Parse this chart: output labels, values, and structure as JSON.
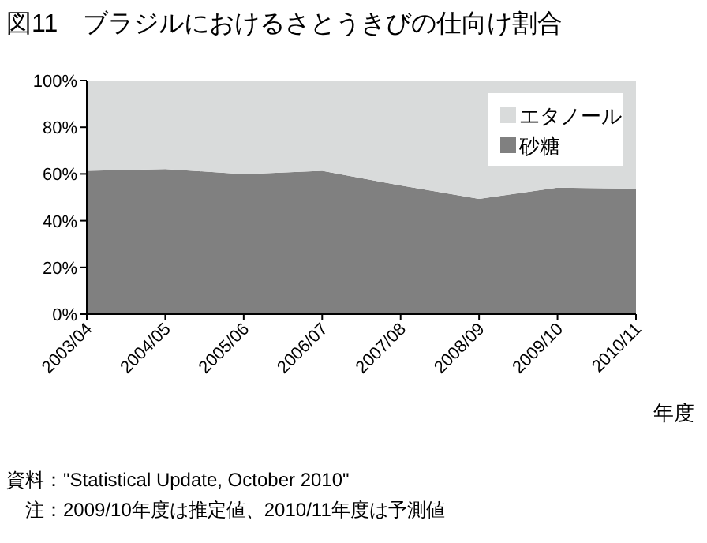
{
  "chart_data": {
    "type": "area",
    "stacked": true,
    "title": "図11　ブラジルにおけるさとうきびの仕向け割合",
    "xlabel": "年度",
    "categories": [
      "2003/04",
      "2004/05",
      "2005/06",
      "2006/07",
      "2007/08",
      "2008/09",
      "2009/10",
      "2010/11"
    ],
    "series": [
      {
        "name": "砂糖",
        "color": "#808080",
        "values": [
          61.3,
          62.1,
          59.9,
          61.3,
          55.1,
          49.3,
          54.1,
          53.7
        ]
      },
      {
        "name": "エタノール",
        "color": "#d9dbdb",
        "values": [
          38.7,
          37.9,
          40.1,
          38.7,
          44.9,
          50.7,
          45.9,
          46.3
        ]
      }
    ],
    "ylim": [
      0,
      100
    ],
    "yticks": [
      {
        "value": 0,
        "label": "0%"
      },
      {
        "value": 20,
        "label": "20%"
      },
      {
        "value": 40,
        "label": "40%"
      },
      {
        "value": 60,
        "label": "60%"
      },
      {
        "value": 80,
        "label": "80%"
      },
      {
        "value": 100,
        "label": "100%"
      }
    ],
    "legend": "top right",
    "grid": false,
    "annotations": [
      "資料：\"Statistical Update, October 2010\"",
      "注：2009/10年度は推定値、2010/11年度は予測値"
    ]
  }
}
